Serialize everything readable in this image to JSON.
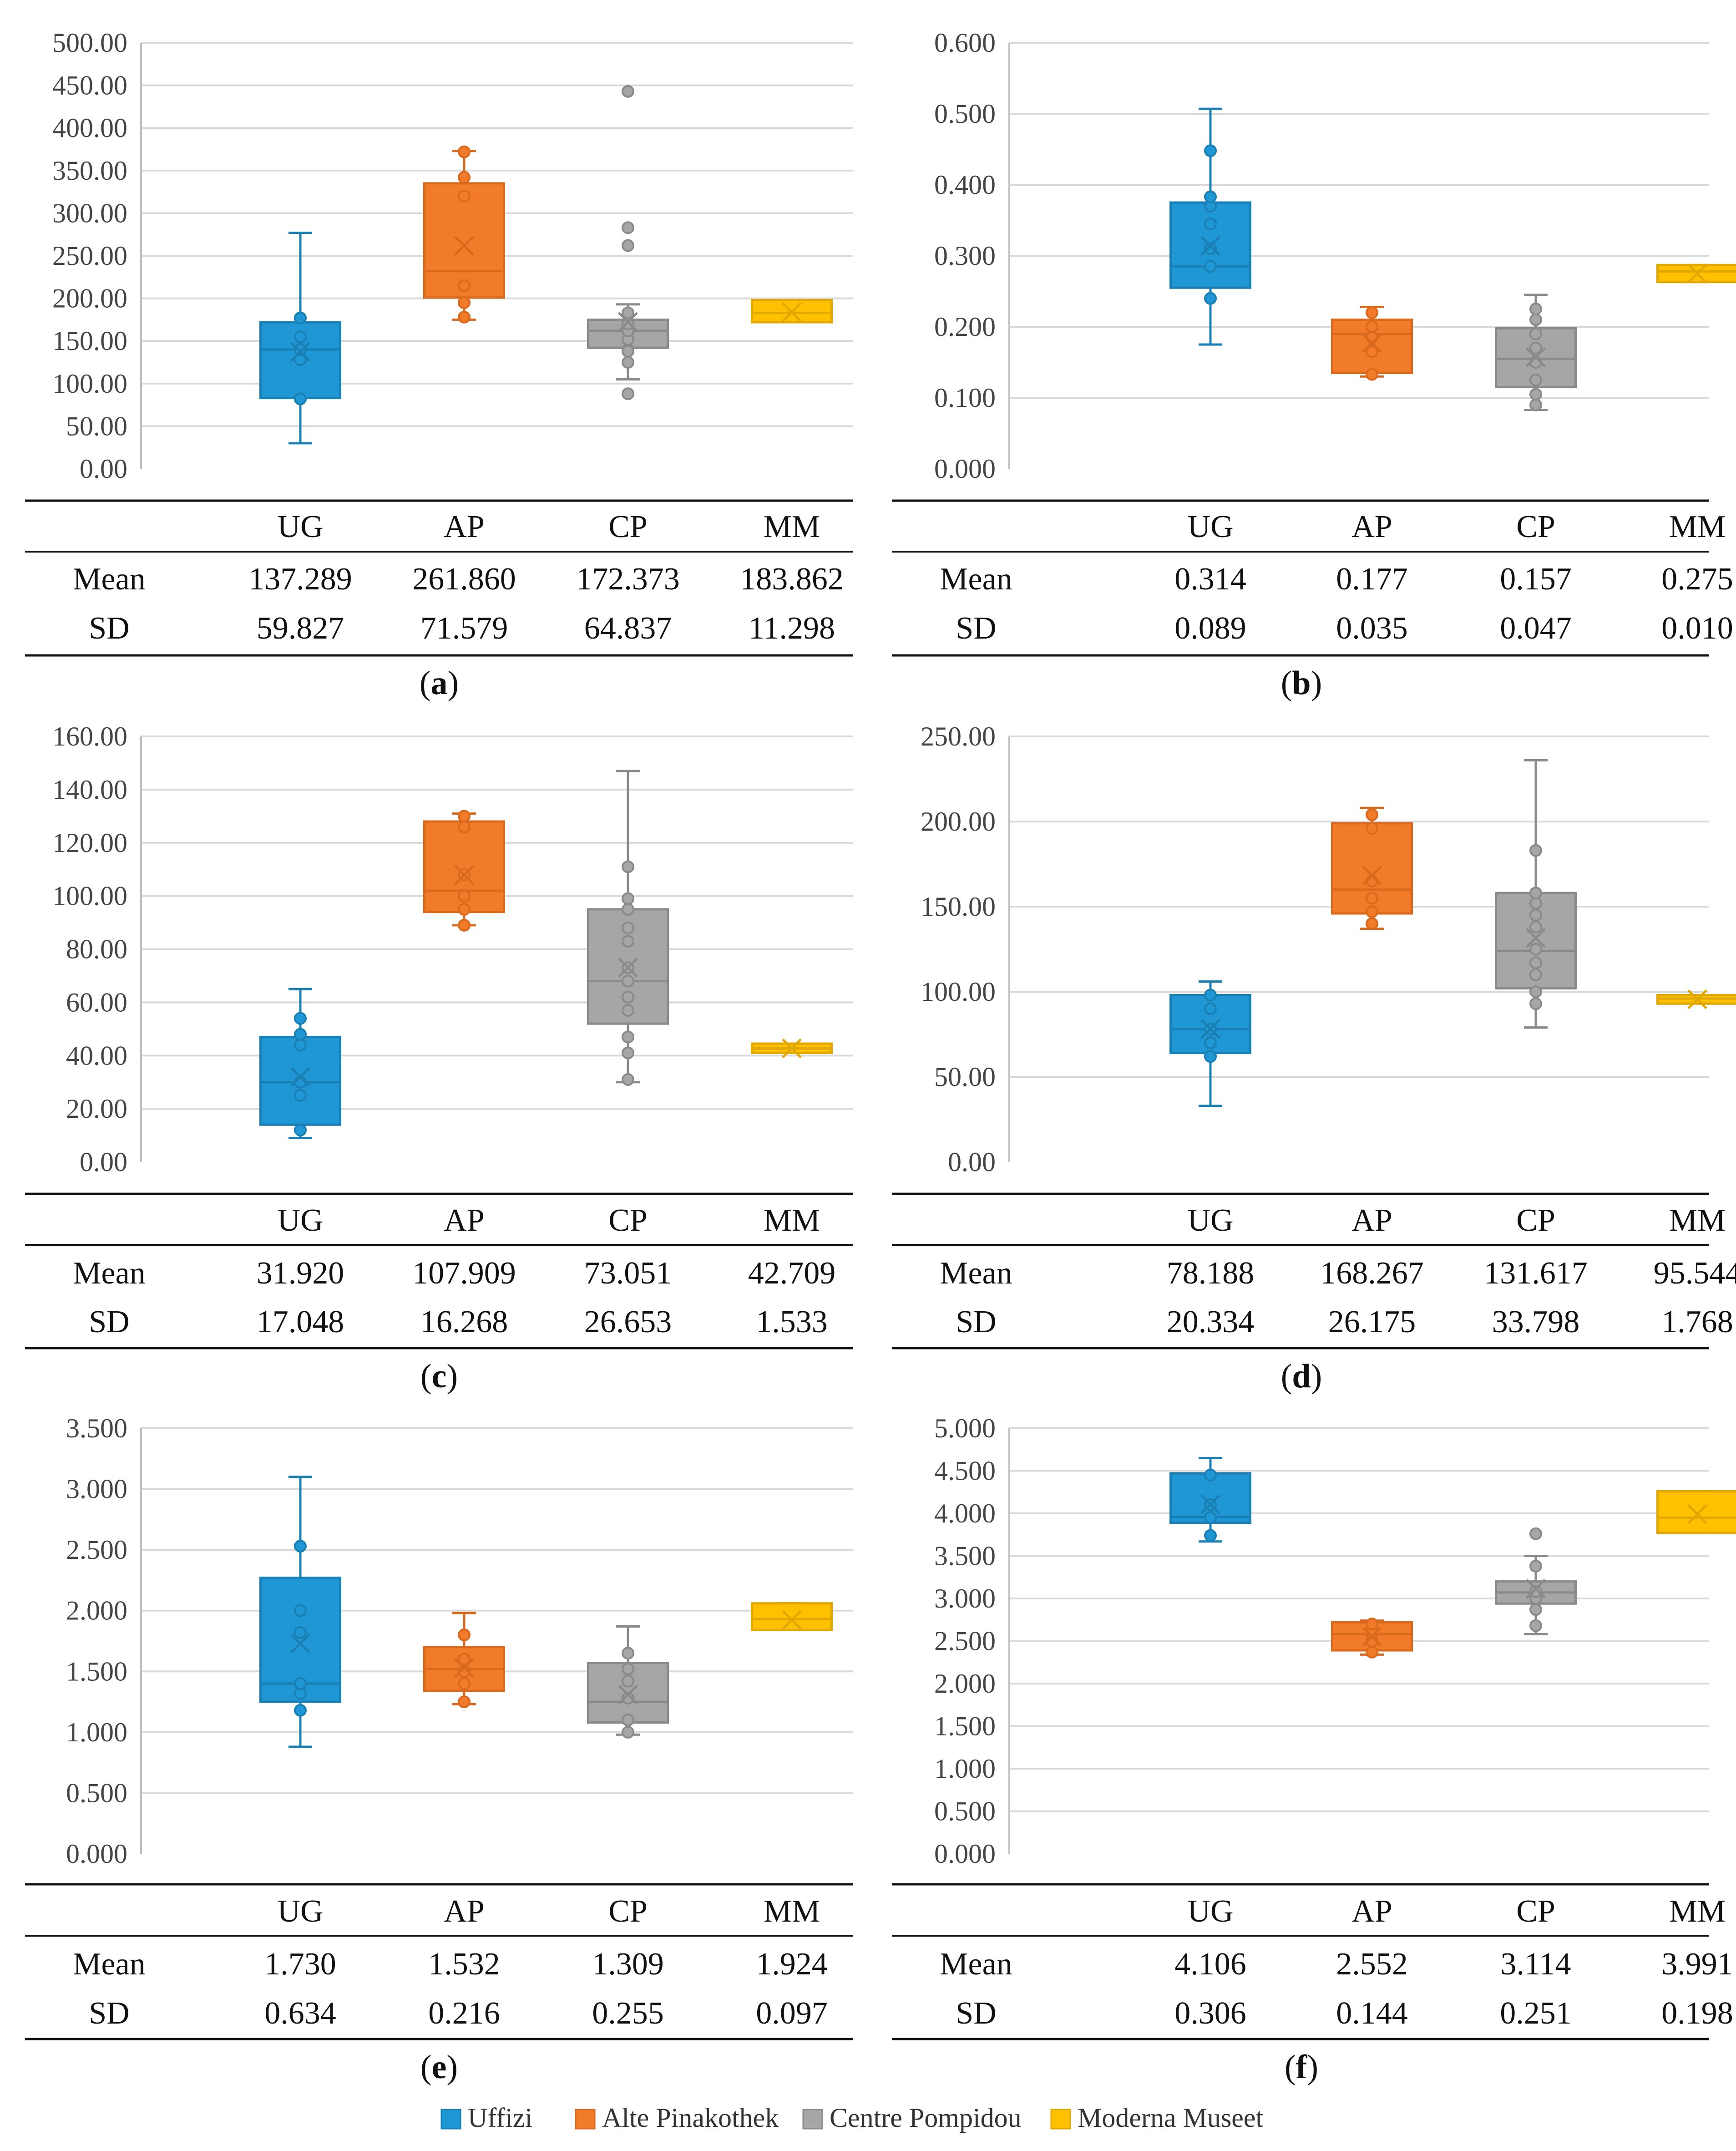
{
  "legend": [
    {
      "code": "UG",
      "name": "Uffizi",
      "color": "#1F97D4",
      "dark": "#1A7FB3"
    },
    {
      "code": "AP",
      "name": "Alte Pinakothek",
      "color": "#F27B2A",
      "dark": "#D9691C"
    },
    {
      "code": "CP",
      "name": "Centre Pompidou",
      "color": "#A6A6A6",
      "dark": "#8A8A8A"
    },
    {
      "code": "MM",
      "name": "Moderna Museet",
      "color": "#FFC000",
      "dark": "#E0A800"
    }
  ],
  "row_labels": {
    "mean": "Mean",
    "sd": "SD"
  },
  "chart_data": [
    {
      "type": "box",
      "panel": "a",
      "label_text": "a",
      "yticks": [
        "0.00",
        "50.00",
        "100.00",
        "150.00",
        "200.00",
        "250.00",
        "300.00",
        "350.00",
        "400.00",
        "450.00",
        "500.00"
      ],
      "ylim": [
        0,
        500
      ],
      "groups": [
        {
          "code": "UG",
          "min": 30,
          "q1": 83,
          "median": 140,
          "q3": 172,
          "max": 277,
          "mean": 137.289,
          "points": [
            82,
            128,
            140,
            155,
            177
          ],
          "outliers": []
        },
        {
          "code": "AP",
          "min": 175,
          "q1": 201,
          "median": 232,
          "q3": 335,
          "max": 373,
          "mean": 261.86,
          "points": [
            178,
            195,
            215,
            320,
            342,
            372
          ],
          "outliers": []
        },
        {
          "code": "CP",
          "min": 105,
          "q1": 142,
          "median": 162,
          "q3": 175,
          "max": 193,
          "mean": 172.373,
          "points": [
            125,
            140,
            152,
            162,
            170,
            183
          ],
          "outliers": [
            88,
            138,
            262,
            283,
            443
          ]
        },
        {
          "code": "MM",
          "min": 172,
          "q1": 172,
          "median": 183,
          "q3": 198,
          "max": 198,
          "mean": 183.862,
          "points": [],
          "outliers": []
        }
      ],
      "table": {
        "mean": [
          "137.289",
          "261.860",
          "172.373",
          "183.862"
        ],
        "sd": [
          "59.827",
          "71.579",
          "64.837",
          "11.298"
        ]
      }
    },
    {
      "type": "box",
      "panel": "b",
      "label_text": "b",
      "yticks": [
        "0.000",
        "0.100",
        "0.200",
        "0.300",
        "0.400",
        "0.500",
        "0.600"
      ],
      "ylim": [
        0,
        0.6
      ],
      "groups": [
        {
          "code": "UG",
          "min": 0.175,
          "q1": 0.255,
          "median": 0.285,
          "q3": 0.375,
          "max": 0.507,
          "mean": 0.314,
          "points": [
            0.24,
            0.285,
            0.31,
            0.345,
            0.37,
            0.383,
            0.448
          ],
          "outliers": []
        },
        {
          "code": "AP",
          "min": 0.13,
          "q1": 0.135,
          "median": 0.19,
          "q3": 0.21,
          "max": 0.228,
          "mean": 0.177,
          "points": [
            0.133,
            0.165,
            0.185,
            0.2,
            0.22
          ],
          "outliers": []
        },
        {
          "code": "CP",
          "min": 0.083,
          "q1": 0.115,
          "median": 0.155,
          "q3": 0.198,
          "max": 0.245,
          "mean": 0.157,
          "points": [
            0.09,
            0.105,
            0.125,
            0.15,
            0.17,
            0.19,
            0.21,
            0.225
          ],
          "outliers": []
        },
        {
          "code": "MM",
          "min": 0.263,
          "q1": 0.263,
          "median": 0.278,
          "q3": 0.287,
          "max": 0.287,
          "mean": 0.275,
          "points": [],
          "outliers": []
        }
      ],
      "table": {
        "mean": [
          "0.314",
          "0.177",
          "0.157",
          "0.275"
        ],
        "sd": [
          "0.089",
          "0.035",
          "0.047",
          "0.010"
        ]
      }
    },
    {
      "type": "box",
      "panel": "c",
      "label_text": "c",
      "yticks": [
        "0.00",
        "20.00",
        "40.00",
        "60.00",
        "80.00",
        "100.00",
        "120.00",
        "140.00",
        "160.00"
      ],
      "ylim": [
        0,
        160
      ],
      "groups": [
        {
          "code": "UG",
          "min": 9,
          "q1": 14,
          "median": 30,
          "q3": 47,
          "max": 65,
          "mean": 31.92,
          "points": [
            12,
            25,
            30,
            44,
            48,
            54
          ],
          "outliers": []
        },
        {
          "code": "AP",
          "min": 89,
          "q1": 94,
          "median": 102,
          "q3": 128,
          "max": 131,
          "mean": 107.909,
          "points": [
            89,
            95,
            100,
            108,
            126,
            130
          ],
          "outliers": []
        },
        {
          "code": "CP",
          "min": 30,
          "q1": 52,
          "median": 68,
          "q3": 95,
          "max": 147,
          "mean": 73.051,
          "points": [
            31,
            41,
            47,
            57,
            62,
            68,
            73,
            83,
            88,
            95,
            99,
            111
          ],
          "outliers": []
        },
        {
          "code": "MM",
          "min": 41,
          "q1": 41,
          "median": 42.7,
          "q3": 44.5,
          "max": 44.5,
          "mean": 42.709,
          "points": [],
          "outliers": []
        }
      ],
      "table": {
        "mean": [
          "31.920",
          "107.909",
          "73.051",
          "42.709"
        ],
        "sd": [
          "17.048",
          "16.268",
          "26.653",
          "1.533"
        ]
      }
    },
    {
      "type": "box",
      "panel": "d",
      "label_text": "d",
      "yticks": [
        "0.00",
        "50.00",
        "100.00",
        "150.00",
        "200.00",
        "250.00"
      ],
      "ylim": [
        0,
        250
      ],
      "groups": [
        {
          "code": "UG",
          "min": 33,
          "q1": 64,
          "median": 78,
          "q3": 98,
          "max": 106,
          "mean": 78.188,
          "points": [
            62,
            70,
            78,
            90,
            98
          ],
          "outliers": []
        },
        {
          "code": "AP",
          "min": 137,
          "q1": 146,
          "median": 160,
          "q3": 199,
          "max": 208,
          "mean": 168.267,
          "points": [
            140,
            147,
            155,
            165,
            196,
            204
          ],
          "outliers": []
        },
        {
          "code": "CP",
          "min": 79,
          "q1": 102,
          "median": 124,
          "q3": 158,
          "max": 236,
          "mean": 131.617,
          "points": [
            93,
            100,
            110,
            117,
            125,
            138,
            145,
            152,
            158,
            183
          ],
          "outliers": []
        },
        {
          "code": "MM",
          "min": 93,
          "q1": 93,
          "median": 96,
          "q3": 98,
          "max": 98,
          "mean": 95.544,
          "points": [],
          "outliers": []
        }
      ],
      "table": {
        "mean": [
          "78.188",
          "168.267",
          "131.617",
          "95.544"
        ],
        "sd": [
          "20.334",
          "26.175",
          "33.798",
          "1.768"
        ]
      }
    },
    {
      "type": "box",
      "panel": "e",
      "label_text": "e",
      "yticks": [
        "0.000",
        "0.500",
        "1.000",
        "1.500",
        "2.000",
        "2.500",
        "3.000",
        "3.500"
      ],
      "ylim": [
        0,
        3.5
      ],
      "groups": [
        {
          "code": "UG",
          "min": 0.88,
          "q1": 1.25,
          "median": 1.4,
          "q3": 2.27,
          "max": 3.1,
          "mean": 1.73,
          "points": [
            1.18,
            1.32,
            1.4,
            1.82,
            2.0,
            2.53
          ],
          "outliers": []
        },
        {
          "code": "AP",
          "min": 1.23,
          "q1": 1.34,
          "median": 1.52,
          "q3": 1.7,
          "max": 1.98,
          "mean": 1.532,
          "points": [
            1.25,
            1.4,
            1.5,
            1.6,
            1.8
          ],
          "outliers": []
        },
        {
          "code": "CP",
          "min": 0.98,
          "q1": 1.08,
          "median": 1.25,
          "q3": 1.57,
          "max": 1.87,
          "mean": 1.309,
          "points": [
            1.0,
            1.1,
            1.28,
            1.42,
            1.52,
            1.65
          ],
          "outliers": []
        },
        {
          "code": "MM",
          "min": 1.84,
          "q1": 1.84,
          "median": 1.93,
          "q3": 2.06,
          "max": 2.06,
          "mean": 1.924,
          "points": [],
          "outliers": []
        }
      ],
      "table": {
        "mean": [
          "1.730",
          "1.532",
          "1.309",
          "1.924"
        ],
        "sd": [
          "0.634",
          "0.216",
          "0.255",
          "0.097"
        ]
      }
    },
    {
      "type": "box",
      "panel": "f",
      "label_text": "f",
      "yticks": [
        "0.000",
        "0.500",
        "1.000",
        "1.500",
        "2.000",
        "2.500",
        "3.000",
        "3.500",
        "4.000",
        "4.500",
        "5.000"
      ],
      "ylim": [
        0,
        5
      ],
      "groups": [
        {
          "code": "UG",
          "min": 3.67,
          "q1": 3.89,
          "median": 3.96,
          "q3": 4.47,
          "max": 4.65,
          "mean": 4.106,
          "points": [
            3.74,
            3.95,
            4.1,
            4.45
          ],
          "outliers": []
        },
        {
          "code": "AP",
          "min": 2.34,
          "q1": 2.39,
          "median": 2.58,
          "q3": 2.72,
          "max": 2.74,
          "mean": 2.552,
          "points": [
            2.37,
            2.5,
            2.6,
            2.7
          ],
          "outliers": []
        },
        {
          "code": "CP",
          "min": 2.58,
          "q1": 2.94,
          "median": 3.07,
          "q3": 3.2,
          "max": 3.5,
          "mean": 3.114,
          "points": [
            2.68,
            2.87,
            3.0,
            3.08,
            3.38
          ],
          "outliers": [
            3.76
          ]
        },
        {
          "code": "MM",
          "min": 3.77,
          "q1": 3.77,
          "median": 3.95,
          "q3": 4.26,
          "max": 4.26,
          "mean": 3.991,
          "points": [],
          "outliers": []
        }
      ],
      "table": {
        "mean": [
          "4.106",
          "2.552",
          "3.114",
          "3.991"
        ],
        "sd": [
          "0.306",
          "0.144",
          "0.251",
          "0.198"
        ]
      }
    }
  ]
}
